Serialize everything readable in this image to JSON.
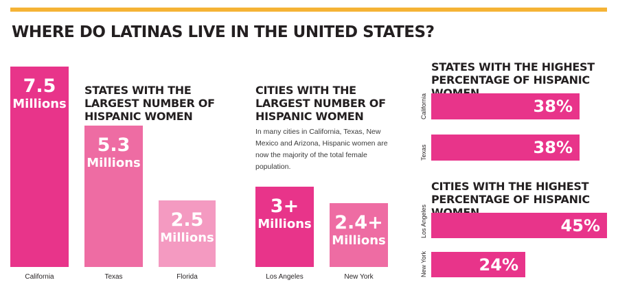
{
  "title": "WHERE DO LATINAS LIVE IN THE UNITED STATES?",
  "colors": {
    "accent_bar": "#f5b335",
    "magenta": "#e8348a",
    "pink": "#ee6ca3",
    "light_pink": "#f49ac1"
  },
  "states_section": {
    "title": "STATES WITH THE\nLARGEST NUMBER OF\nHISPANIC WOMEN"
  },
  "cities_section": {
    "title": "CITIES WITH THE\nLARGEST NUMBER OF\nHISPANIC WOMEN",
    "note": "In many cities in California, Texas, New Mexico and Arizona, Hispanic women are now the majority of the total female population."
  },
  "states_pct_section": {
    "title": "STATES WITH THE HIGHEST\nPERCENTAGE OF HISPANIC WOMEN"
  },
  "cities_pct_section": {
    "title": "CITIES WITH THE HIGHEST\nPERCENTAGE OF HISPANIC WOMEN"
  },
  "chart_data": [
    {
      "type": "bar",
      "title": "STATES WITH THE LARGEST NUMBER OF HISPANIC WOMEN",
      "categories": [
        "California",
        "Texas",
        "Florida"
      ],
      "values": [
        7.5,
        5.3,
        2.5
      ],
      "value_labels": [
        "7.5",
        "5.3",
        "2.5"
      ],
      "unit_label": "Millions",
      "colors": [
        "#e8348a",
        "#ee6ca3",
        "#f49ac1"
      ]
    },
    {
      "type": "bar",
      "title": "CITIES WITH THE LARGEST NUMBER OF HISPANIC WOMEN",
      "categories": [
        "Los Angeles",
        "New York"
      ],
      "values": [
        3,
        2.4
      ],
      "value_labels": [
        "3+",
        "2.4+"
      ],
      "unit_label": "Millions",
      "colors": [
        "#e8348a",
        "#ee6ca3"
      ]
    },
    {
      "type": "bar",
      "orientation": "horizontal",
      "title": "STATES WITH THE HIGHEST PERCENTAGE OF HISPANIC WOMEN",
      "categories": [
        "California",
        "Texas"
      ],
      "values": [
        38,
        38
      ],
      "value_labels": [
        "38%",
        "38%"
      ],
      "color": "#e8348a"
    },
    {
      "type": "bar",
      "orientation": "horizontal",
      "title": "CITIES WITH THE HIGHEST PERCENTAGE OF HISPANIC WOMEN",
      "categories": [
        "Los Angeles",
        "New York"
      ],
      "values": [
        45,
        24
      ],
      "value_labels": [
        "45%",
        "24%"
      ],
      "color": "#e8348a"
    }
  ]
}
